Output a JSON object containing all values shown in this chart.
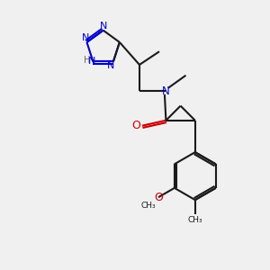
{
  "bg_color": "#f0f0f0",
  "bond_color": "#1a1a1a",
  "N_color": "#0000cc",
  "O_color": "#cc0000",
  "line_width": 1.5,
  "double_sep": 0.08,
  "figsize": [
    3.0,
    3.0
  ],
  "dpi": 100,
  "xlim": [
    0,
    10
  ],
  "ylim": [
    0,
    10
  ]
}
